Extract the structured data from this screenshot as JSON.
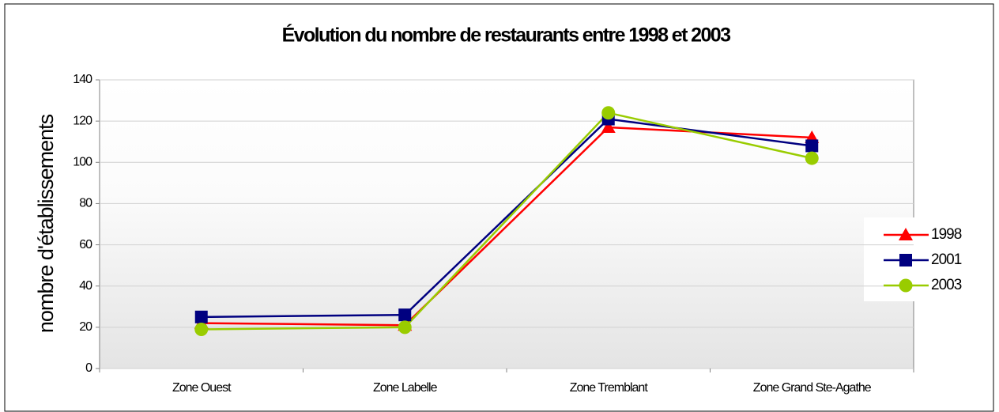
{
  "chart_data": {
    "type": "line",
    "title": "Évolution du nombre de restaurants entre 1998 et 2003",
    "y_label": "nombre d'établissements",
    "categories": [
      "Zone Ouest",
      "Zone Labelle",
      "Zone Tremblant",
      "Zone Grand Ste-Agathe"
    ],
    "series": [
      {
        "name": "1998",
        "color": "#ff0000",
        "marker": "triangle",
        "values": [
          22,
          21,
          117,
          112
        ]
      },
      {
        "name": "2001",
        "color": "#000080",
        "marker": "square",
        "values": [
          25,
          26,
          121,
          108
        ]
      },
      {
        "name": "2003",
        "color": "#99cc00",
        "marker": "circle",
        "values": [
          19,
          20,
          124,
          102
        ]
      }
    ],
    "ylim": [
      0,
      140
    ],
    "yticks": [
      0,
      20,
      40,
      60,
      80,
      100,
      120,
      140
    ],
    "grid": true,
    "legend": "right"
  }
}
